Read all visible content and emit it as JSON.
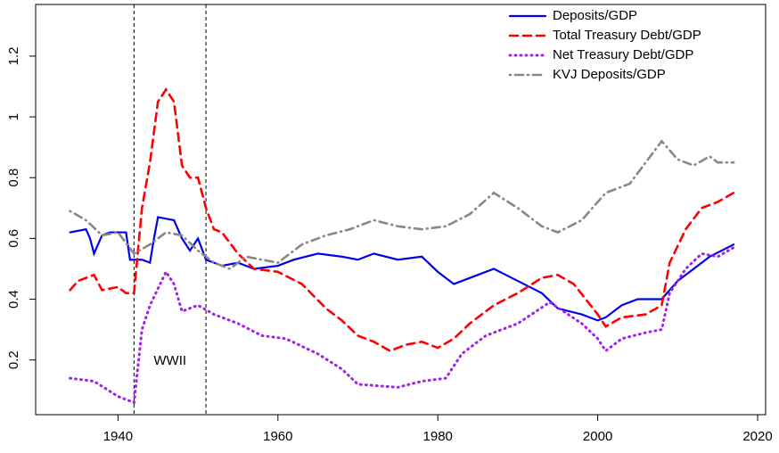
{
  "chart_data": {
    "type": "line",
    "xlim": [
      1929.7,
      2021
    ],
    "ylim": [
      0.02,
      1.37
    ],
    "xticks": [
      1940,
      1960,
      1980,
      2000,
      2020
    ],
    "yticks": [
      0.2,
      0.4,
      0.6,
      0.8,
      1.0,
      1.2
    ],
    "legend": "topright",
    "vlines": [
      1942,
      1951
    ],
    "annotations": [
      {
        "text": "WWII"
      }
    ],
    "series": [
      {
        "name": "Deposits/GDP",
        "color": "#0000ee",
        "dash": "solid",
        "x": [
          1934,
          1936,
          1936.5,
          1937,
          1938,
          1939,
          1941,
          1941.5,
          1943,
          1944,
          1944.5,
          1945,
          1947,
          1948,
          1949,
          1950,
          1951,
          1953,
          1955,
          1957,
          1960,
          1962,
          1965,
          1968,
          1970,
          1972,
          1975,
          1978,
          1980,
          1982,
          1984,
          1987,
          1990,
          1993,
          1995,
          1998,
          2000,
          2001,
          2003,
          2005,
          2008,
          2010,
          2012,
          2014,
          2017
        ],
        "values": [
          0.62,
          0.63,
          0.6,
          0.55,
          0.61,
          0.62,
          0.62,
          0.53,
          0.53,
          0.52,
          0.6,
          0.67,
          0.66,
          0.6,
          0.56,
          0.6,
          0.53,
          0.51,
          0.52,
          0.5,
          0.51,
          0.53,
          0.55,
          0.54,
          0.53,
          0.55,
          0.53,
          0.54,
          0.49,
          0.45,
          0.47,
          0.5,
          0.46,
          0.42,
          0.37,
          0.35,
          0.33,
          0.34,
          0.38,
          0.4,
          0.4,
          0.46,
          0.5,
          0.54,
          0.58
        ]
      },
      {
        "name": "Total Treasury Debt/GDP",
        "color": "#ff0000",
        "dash": "dashed",
        "x": [
          1934,
          1935,
          1937,
          1938,
          1940,
          1941,
          1942,
          1943,
          1944,
          1945,
          1946,
          1947,
          1948,
          1949,
          1950,
          1951,
          1952,
          1953,
          1955,
          1957,
          1960,
          1963,
          1966,
          1968,
          1970,
          1972,
          1974,
          1976,
          1978,
          1980,
          1982,
          1984,
          1987,
          1990,
          1993,
          1995,
          1997,
          2000,
          2001,
          2003,
          2006,
          2008,
          2009,
          2011,
          2013,
          2015,
          2017
        ],
        "values": [
          0.43,
          0.46,
          0.48,
          0.43,
          0.44,
          0.42,
          0.42,
          0.7,
          0.85,
          1.05,
          1.09,
          1.05,
          0.84,
          0.8,
          0.8,
          0.7,
          0.63,
          0.62,
          0.55,
          0.5,
          0.49,
          0.45,
          0.37,
          0.33,
          0.28,
          0.26,
          0.23,
          0.25,
          0.26,
          0.24,
          0.27,
          0.32,
          0.38,
          0.42,
          0.47,
          0.48,
          0.45,
          0.35,
          0.31,
          0.34,
          0.35,
          0.38,
          0.52,
          0.63,
          0.7,
          0.72,
          0.75
        ]
      },
      {
        "name": "Net Treasury Debt/GDP",
        "color": "#a020f0",
        "dash": "dotted",
        "x": [
          1934,
          1937,
          1940,
          1942,
          1943,
          1944,
          1946,
          1947,
          1948,
          1950,
          1952,
          1955,
          1958,
          1961,
          1965,
          1968,
          1970,
          1975,
          1978,
          1981,
          1983,
          1986,
          1990,
          1994,
          1998,
          2000,
          2001,
          2003,
          2006,
          2008,
          2009,
          2011,
          2013,
          2015,
          2017
        ],
        "values": [
          0.14,
          0.13,
          0.08,
          0.06,
          0.3,
          0.38,
          0.49,
          0.45,
          0.36,
          0.38,
          0.35,
          0.32,
          0.28,
          0.27,
          0.22,
          0.17,
          0.12,
          0.11,
          0.13,
          0.14,
          0.22,
          0.28,
          0.32,
          0.39,
          0.32,
          0.27,
          0.23,
          0.27,
          0.29,
          0.3,
          0.42,
          0.5,
          0.55,
          0.54,
          0.57
        ]
      },
      {
        "name": "KVJ Deposits/GDP",
        "color": "#888888",
        "dash": "dotdash",
        "x": [
          1934,
          1936,
          1938,
          1940,
          1942,
          1944,
          1946,
          1948,
          1950,
          1952,
          1954,
          1956,
          1960,
          1963,
          1966,
          1969,
          1972,
          1975,
          1978,
          1981,
          1984,
          1987,
          1990,
          1993,
          1995,
          1998,
          2001,
          2004,
          2006,
          2008,
          2010,
          2012,
          2014,
          2015,
          2017
        ],
        "values": [
          0.69,
          0.66,
          0.61,
          0.62,
          0.55,
          0.58,
          0.62,
          0.61,
          0.56,
          0.52,
          0.5,
          0.54,
          0.52,
          0.58,
          0.61,
          0.63,
          0.66,
          0.64,
          0.63,
          0.64,
          0.68,
          0.75,
          0.7,
          0.64,
          0.62,
          0.66,
          0.75,
          0.78,
          0.85,
          0.92,
          0.86,
          0.84,
          0.87,
          0.85,
          0.85
        ]
      }
    ]
  }
}
